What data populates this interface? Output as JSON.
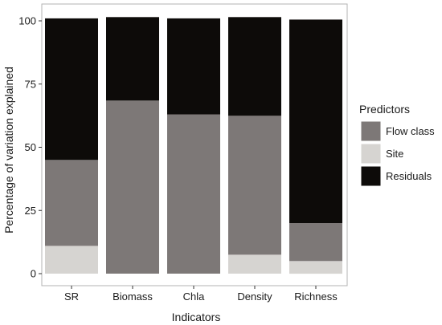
{
  "chart_data": {
    "type": "bar",
    "stacked": true,
    "categories": [
      "SR",
      "Biomass",
      "Chla",
      "Density",
      "Richness"
    ],
    "series": [
      {
        "name": "Site",
        "color": "#d6d4d1",
        "values": [
          11,
          0,
          0,
          7.5,
          5
        ]
      },
      {
        "name": "Flow class",
        "color": "#7d7877",
        "values": [
          34,
          68.5,
          63,
          55,
          15
        ]
      },
      {
        "name": "Residuals",
        "color": "#0d0b09",
        "values": [
          56,
          33,
          38,
          39,
          80.5
        ]
      }
    ],
    "xlabel": "Indicators",
    "ylabel": "Percentage of variation explained",
    "ylim": [
      0,
      105
    ],
    "yticks": [
      0,
      25,
      50,
      75,
      100
    ],
    "grid": false,
    "legend": {
      "title": "Predictors",
      "placement": "right",
      "order": [
        "Flow class",
        "Site",
        "Residuals"
      ]
    },
    "panel_border_color": "#b3b3b3"
  }
}
